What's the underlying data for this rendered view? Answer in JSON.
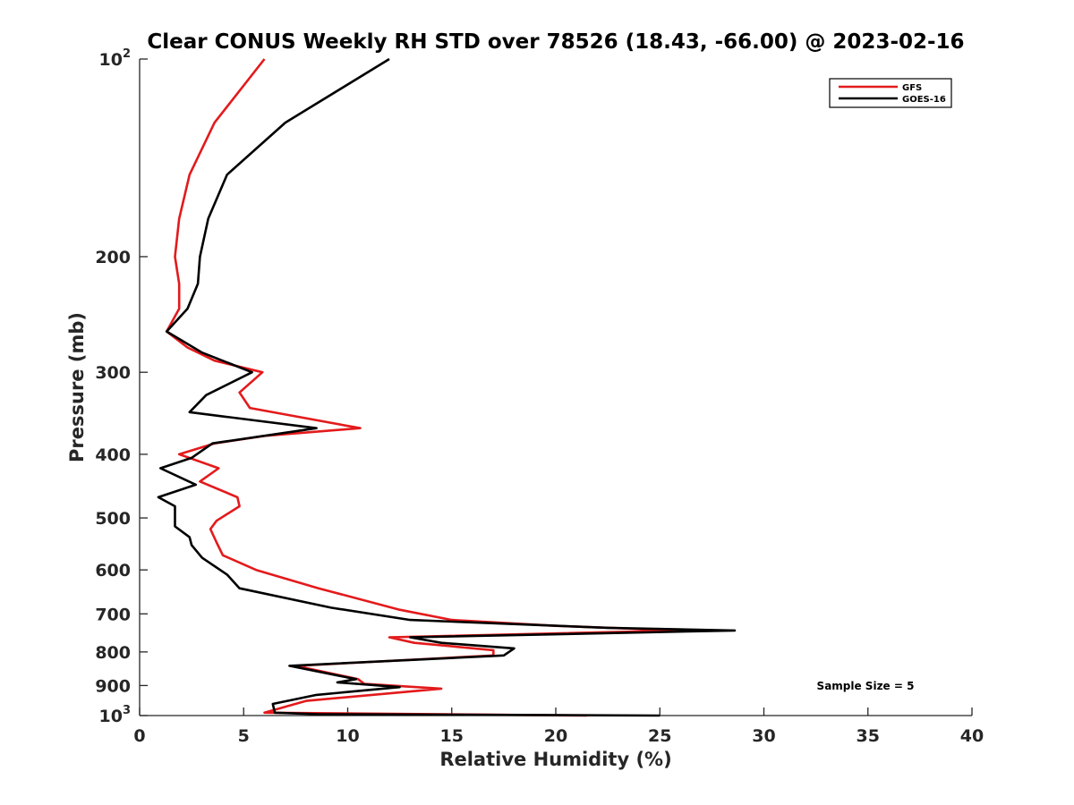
{
  "chart_data": {
    "type": "line",
    "title": "Clear CONUS Weekly RH STD over 78526 (18.43, -66.00) @ 2023-02-16",
    "xlabel": "Relative Humidity (%)",
    "ylabel": "Pressure (mb)",
    "xlim": [
      0,
      40
    ],
    "ylim": [
      100,
      1000
    ],
    "y_scale": "log",
    "y_reversed": true,
    "x_ticks": [
      0,
      5,
      10,
      15,
      20,
      25,
      30,
      35,
      40
    ],
    "x_tick_labels": [
      "0",
      "5",
      "10",
      "15",
      "20",
      "25",
      "30",
      "35",
      "40"
    ],
    "y_ticks": [
      100,
      200,
      300,
      400,
      500,
      600,
      700,
      800,
      900,
      1000
    ],
    "y_tick_labels": [
      {
        "base": "10",
        "exp": "2"
      },
      {
        "base": "200",
        "exp": ""
      },
      {
        "base": "300",
        "exp": ""
      },
      {
        "base": "400",
        "exp": ""
      },
      {
        "base": "500",
        "exp": ""
      },
      {
        "base": "600",
        "exp": ""
      },
      {
        "base": "700",
        "exp": ""
      },
      {
        "base": "800",
        "exp": ""
      },
      {
        "base": "900",
        "exp": ""
      },
      {
        "base": "10",
        "exp": "3"
      }
    ],
    "grid": false,
    "legend_position": "top-right",
    "annotation": "Sample Size = 5",
    "series": [
      {
        "name": "GFS",
        "color": "#e31a1c",
        "points": [
          [
            6.0,
            100
          ],
          [
            3.6,
            125
          ],
          [
            2.4,
            150
          ],
          [
            1.9,
            175
          ],
          [
            1.7,
            200
          ],
          [
            1.9,
            220
          ],
          [
            1.9,
            240
          ],
          [
            1.3,
            260
          ],
          [
            2.3,
            275
          ],
          [
            3.6,
            288
          ],
          [
            5.9,
            300
          ],
          [
            4.8,
            322
          ],
          [
            5.3,
            340
          ],
          [
            10.6,
            365
          ],
          [
            6.0,
            375
          ],
          [
            3.6,
            385
          ],
          [
            1.9,
            400
          ],
          [
            3.8,
            420
          ],
          [
            2.9,
            440
          ],
          [
            4.7,
            465
          ],
          [
            4.8,
            480
          ],
          [
            3.7,
            505
          ],
          [
            3.4,
            520
          ],
          [
            3.7,
            545
          ],
          [
            4.0,
            570
          ],
          [
            5.6,
            600
          ],
          [
            8.6,
            640
          ],
          [
            12.5,
            690
          ],
          [
            15.0,
            715
          ],
          [
            20.0,
            730
          ],
          [
            26.0,
            742
          ],
          [
            12.0,
            760
          ],
          [
            13.2,
            775
          ],
          [
            17.0,
            795
          ],
          [
            17.0,
            810
          ],
          [
            7.5,
            840
          ],
          [
            10.5,
            880
          ],
          [
            10.8,
            895
          ],
          [
            14.5,
            910
          ],
          [
            8.0,
            950
          ],
          [
            6.0,
            990
          ],
          [
            21.5,
            1000
          ]
        ]
      },
      {
        "name": "GOES-16",
        "color": "#000000",
        "points": [
          [
            12.0,
            100
          ],
          [
            7.0,
            125
          ],
          [
            4.2,
            150
          ],
          [
            3.3,
            175
          ],
          [
            2.9,
            200
          ],
          [
            2.8,
            220
          ],
          [
            2.3,
            240
          ],
          [
            1.3,
            260
          ],
          [
            3.0,
            280
          ],
          [
            5.4,
            300
          ],
          [
            3.2,
            325
          ],
          [
            2.4,
            345
          ],
          [
            8.5,
            365
          ],
          [
            3.5,
            385
          ],
          [
            2.5,
            405
          ],
          [
            1.0,
            420
          ],
          [
            2.7,
            445
          ],
          [
            0.9,
            465
          ],
          [
            1.7,
            480
          ],
          [
            1.7,
            515
          ],
          [
            2.4,
            535
          ],
          [
            2.5,
            550
          ],
          [
            3.0,
            575
          ],
          [
            4.2,
            610
          ],
          [
            4.8,
            640
          ],
          [
            9.2,
            685
          ],
          [
            13.0,
            715
          ],
          [
            22.5,
            735
          ],
          [
            28.6,
            742
          ],
          [
            13.0,
            760
          ],
          [
            14.5,
            775
          ],
          [
            18.0,
            790
          ],
          [
            17.5,
            810
          ],
          [
            7.2,
            840
          ],
          [
            10.4,
            880
          ],
          [
            9.5,
            890
          ],
          [
            12.5,
            905
          ],
          [
            8.5,
            930
          ],
          [
            6.4,
            960
          ],
          [
            6.5,
            990
          ],
          [
            8.5,
            995
          ],
          [
            25.0,
            1000
          ]
        ]
      }
    ]
  }
}
